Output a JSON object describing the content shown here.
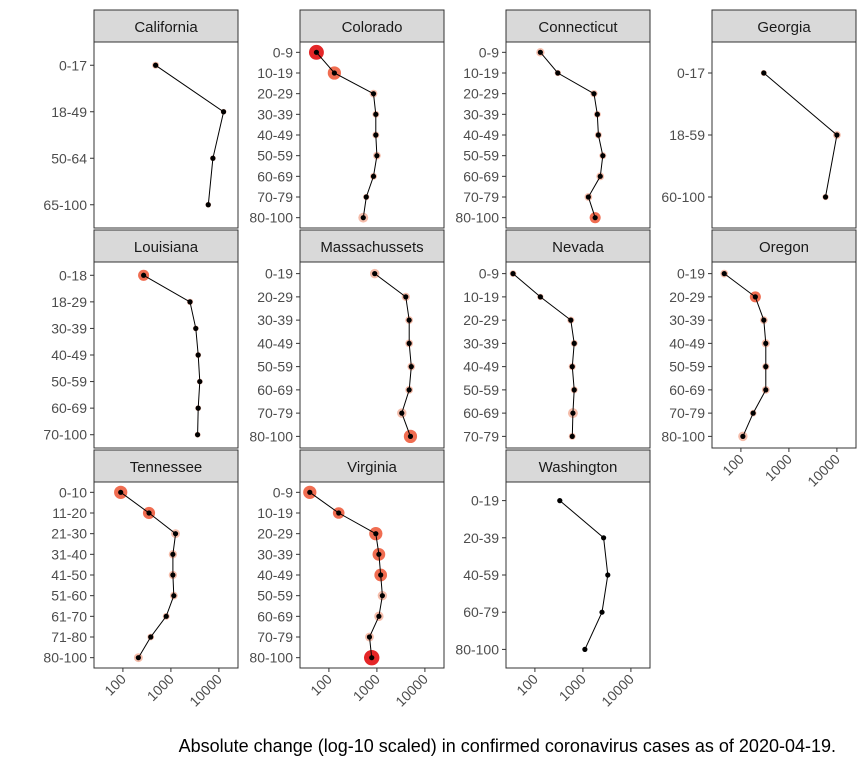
{
  "caption": "Absolute change (log-10 scaled) in confirmed coronavirus cases as of 2020-04-19.",
  "chart_data": {
    "type": "scatter",
    "title": "",
    "xlabel": "",
    "ylabel": "",
    "x_scale": "log10",
    "x_ticks": [
      100,
      1000,
      10000
    ],
    "x_tick_labels": [
      "100",
      "1000",
      "10000"
    ],
    "xlim": [
      25,
      25000
    ],
    "layout": "facet grid, 4 columns, shared log x-axis",
    "grid": false,
    "legend": "none",
    "colors": {
      "strip_fill": "#d9d9d9",
      "line": "#000000",
      "point": "#000000",
      "marker_light": "#f4b9a6",
      "marker_mid": "#ef6548",
      "marker_dark": "#e31a1c"
    },
    "panels": [
      {
        "state": "California",
        "groups": [
          {
            "label": "0-17",
            "value": 480,
            "change": 18
          },
          {
            "label": "18-49",
            "value": 12500,
            "change": 6
          },
          {
            "label": "50-64",
            "value": 7500,
            "change": 6
          },
          {
            "label": "65-100",
            "value": 6000,
            "change": 6
          }
        ]
      },
      {
        "state": "Colorado",
        "groups": [
          {
            "label": "0-9",
            "value": 55,
            "change": 90
          },
          {
            "label": "10-19",
            "value": 130,
            "change": 75
          },
          {
            "label": "20-29",
            "value": 850,
            "change": 25
          },
          {
            "label": "30-39",
            "value": 950,
            "change": 18
          },
          {
            "label": "40-49",
            "value": 950,
            "change": 18
          },
          {
            "label": "50-59",
            "value": 1000,
            "change": 25
          },
          {
            "label": "60-69",
            "value": 850,
            "change": 18
          },
          {
            "label": "70-79",
            "value": 600,
            "change": 12
          },
          {
            "label": "80-100",
            "value": 520,
            "change": 45
          }
        ]
      },
      {
        "state": "Connecticut",
        "groups": [
          {
            "label": "0-9",
            "value": 130,
            "change": 30
          },
          {
            "label": "10-19",
            "value": 300,
            "change": 12
          },
          {
            "label": "20-29",
            "value": 1700,
            "change": 20
          },
          {
            "label": "30-39",
            "value": 2000,
            "change": 18
          },
          {
            "label": "40-49",
            "value": 2100,
            "change": 18
          },
          {
            "label": "50-59",
            "value": 2600,
            "change": 18
          },
          {
            "label": "60-69",
            "value": 2300,
            "change": 25
          },
          {
            "label": "70-79",
            "value": 1300,
            "change": 25
          },
          {
            "label": "80-100",
            "value": 1800,
            "change": 55
          }
        ]
      },
      {
        "state": "Georgia",
        "groups": [
          {
            "label": "0-17",
            "value": 300,
            "change": 10
          },
          {
            "label": "18-59",
            "value": 10000,
            "change": 25
          },
          {
            "label": "60-100",
            "value": 5800,
            "change": 12
          }
        ]
      },
      {
        "state": "Louisiana",
        "groups": [
          {
            "label": "0-18",
            "value": 270,
            "change": 55
          },
          {
            "label": "18-29",
            "value": 2500,
            "change": 12
          },
          {
            "label": "30-39",
            "value": 3300,
            "change": 8
          },
          {
            "label": "40-49",
            "value": 3700,
            "change": 8
          },
          {
            "label": "50-59",
            "value": 4000,
            "change": 8
          },
          {
            "label": "60-69",
            "value": 3700,
            "change": 8
          },
          {
            "label": "70-100",
            "value": 3600,
            "change": 8
          }
        ]
      },
      {
        "state": "Massachussets",
        "groups": [
          {
            "label": "0-19",
            "value": 900,
            "change": 40
          },
          {
            "label": "20-29",
            "value": 4000,
            "change": 30
          },
          {
            "label": "30-39",
            "value": 4700,
            "change": 25
          },
          {
            "label": "40-49",
            "value": 4700,
            "change": 25
          },
          {
            "label": "50-59",
            "value": 5200,
            "change": 25
          },
          {
            "label": "60-69",
            "value": 4700,
            "change": 25
          },
          {
            "label": "70-79",
            "value": 3300,
            "change": 40
          },
          {
            "label": "80-100",
            "value": 5000,
            "change": 75
          }
        ]
      },
      {
        "state": "Nevada",
        "groups": [
          {
            "label": "0-9",
            "value": 35,
            "change": 15
          },
          {
            "label": "10-19",
            "value": 130,
            "change": 12
          },
          {
            "label": "20-29",
            "value": 560,
            "change": 18
          },
          {
            "label": "30-39",
            "value": 660,
            "change": 18
          },
          {
            "label": "40-49",
            "value": 600,
            "change": 18
          },
          {
            "label": "50-59",
            "value": 660,
            "change": 18
          },
          {
            "label": "60-69",
            "value": 620,
            "change": 45
          },
          {
            "label": "70-79",
            "value": 600,
            "change": 18
          }
        ]
      },
      {
        "state": "Oregon",
        "groups": [
          {
            "label": "0-19",
            "value": 45,
            "change": 25
          },
          {
            "label": "20-29",
            "value": 200,
            "change": 55
          },
          {
            "label": "30-39",
            "value": 300,
            "change": 25
          },
          {
            "label": "40-49",
            "value": 330,
            "change": 30
          },
          {
            "label": "50-59",
            "value": 330,
            "change": 20
          },
          {
            "label": "60-69",
            "value": 330,
            "change": 25
          },
          {
            "label": "70-79",
            "value": 180,
            "change": 15
          },
          {
            "label": "80-100",
            "value": 110,
            "change": 40
          }
        ]
      },
      {
        "state": "Tennessee",
        "groups": [
          {
            "label": "0-10",
            "value": 90,
            "change": 75
          },
          {
            "label": "11-20",
            "value": 350,
            "change": 65
          },
          {
            "label": "21-30",
            "value": 1250,
            "change": 35
          },
          {
            "label": "31-40",
            "value": 1100,
            "change": 30
          },
          {
            "label": "41-50",
            "value": 1100,
            "change": 30
          },
          {
            "label": "51-60",
            "value": 1150,
            "change": 25
          },
          {
            "label": "61-70",
            "value": 800,
            "change": 18
          },
          {
            "label": "71-80",
            "value": 380,
            "change": 15
          },
          {
            "label": "80-100",
            "value": 210,
            "change": 35
          }
        ]
      },
      {
        "state": "Virginia",
        "groups": [
          {
            "label": "0-9",
            "value": 40,
            "change": 75
          },
          {
            "label": "10-19",
            "value": 160,
            "change": 60
          },
          {
            "label": "20-29",
            "value": 950,
            "change": 75
          },
          {
            "label": "30-39",
            "value": 1100,
            "change": 70
          },
          {
            "label": "40-49",
            "value": 1200,
            "change": 70
          },
          {
            "label": "50-59",
            "value": 1300,
            "change": 40
          },
          {
            "label": "60-69",
            "value": 1100,
            "change": 40
          },
          {
            "label": "70-79",
            "value": 700,
            "change": 35
          },
          {
            "label": "80-100",
            "value": 780,
            "change": 95
          }
        ]
      },
      {
        "state": "Washington",
        "groups": [
          {
            "label": "0-19",
            "value": 330,
            "change": 0
          },
          {
            "label": "20-39",
            "value": 2700,
            "change": 0
          },
          {
            "label": "40-59",
            "value": 3300,
            "change": 0
          },
          {
            "label": "60-79",
            "value": 2500,
            "change": 0
          },
          {
            "label": "80-100",
            "value": 1100,
            "change": 0
          }
        ]
      }
    ]
  }
}
